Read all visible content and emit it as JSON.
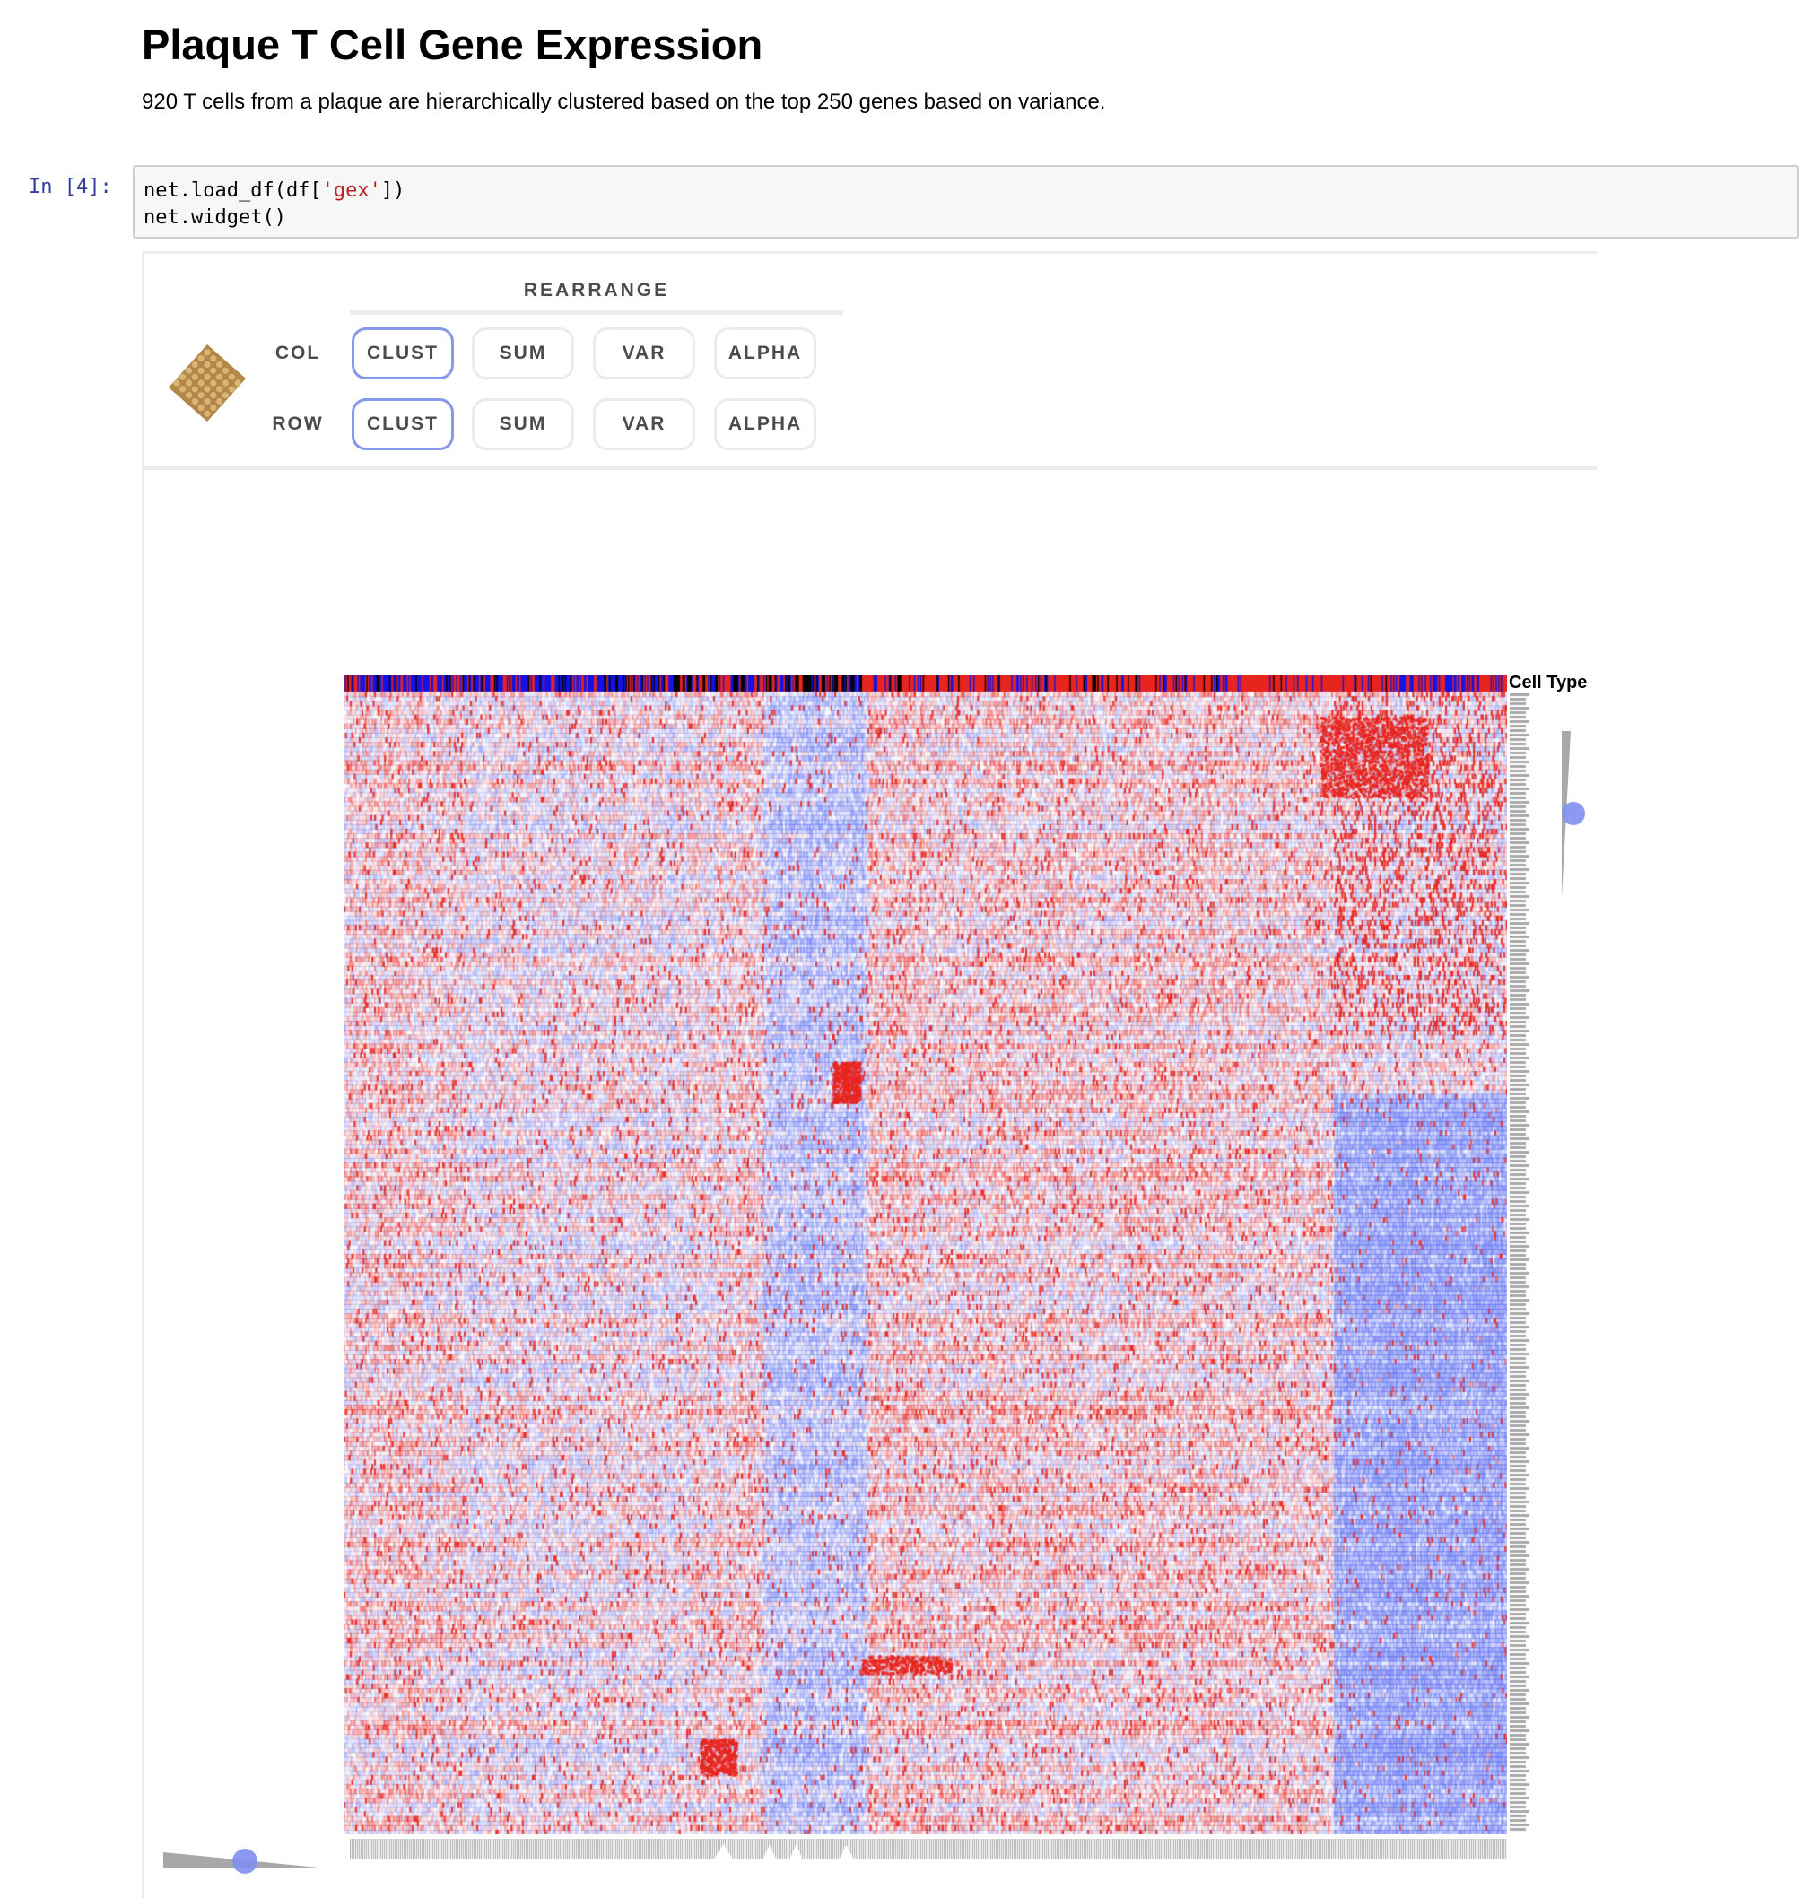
{
  "markdown": {
    "title": "Plaque T Cell Gene Expression",
    "description": "920 T cells from a plaque are hierarchically clustered based on the top 250 genes based on variance."
  },
  "cell": {
    "prompt": "In [4]:",
    "code_lines": [
      [
        "net.load_df(df[",
        "'gex'",
        "])"
      ],
      [
        "net.widget()"
      ]
    ]
  },
  "widget": {
    "logo_icon": "clustergrammer-logo-icon",
    "rearrange_title": "REARRANGE",
    "rows": [
      {
        "label": "COL",
        "buttons": [
          "CLUST",
          "SUM",
          "VAR",
          "ALPHA"
        ],
        "active": "CLUST"
      },
      {
        "label": "ROW",
        "buttons": [
          "CLUST",
          "SUM",
          "VAR",
          "ALPHA"
        ],
        "active": "CLUST"
      }
    ],
    "category_label": "Cell Type",
    "colors": {
      "accent": "#8797ee",
      "slider_handle": "#7f8ef0",
      "heat_high": "#e8251f",
      "heat_low": "#5a6cf0",
      "logo": "#b28748",
      "slider_bar": "#a8a8a8",
      "cat_red": "#e8251f",
      "cat_blue": "#1414e6",
      "cat_black": "#000000"
    }
  },
  "chart_data": {
    "type": "heatmap",
    "n_columns": 920,
    "n_rows": 250,
    "column_category": "Cell Type",
    "column_category_colors": [
      "#e8251f",
      "#1414e6",
      "#000000"
    ],
    "color_scale": {
      "low": "#5a6cf0",
      "mid": "#ffffff",
      "high": "#e8251f"
    },
    "row_order": "clust",
    "column_order": "clust"
  }
}
